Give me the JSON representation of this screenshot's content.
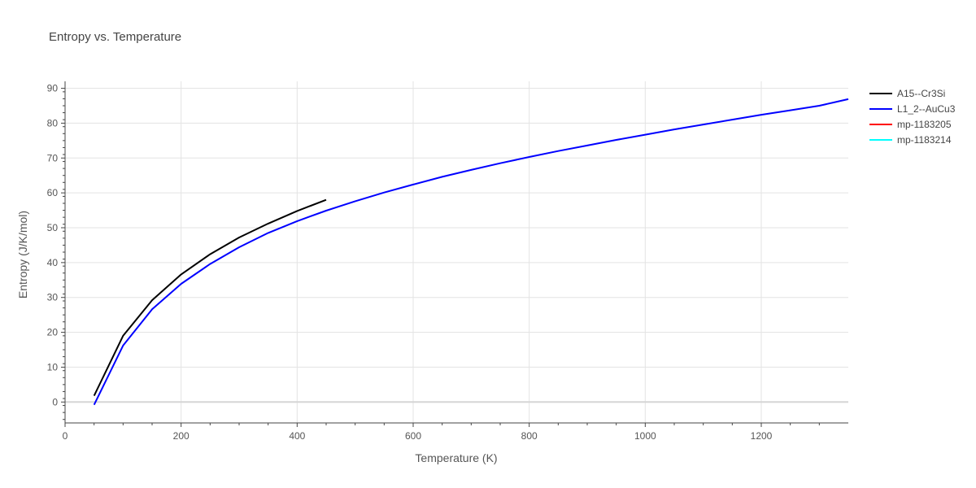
{
  "chart_data": {
    "type": "line",
    "title": "Entropy vs. Temperature",
    "xlabel": "Temperature (K)",
    "ylabel": "Entropy (J/K/mol)",
    "xlim": [
      0,
      1350
    ],
    "ylim": [
      -6,
      92
    ],
    "xticks": [
      0,
      200,
      400,
      600,
      800,
      1000,
      1200
    ],
    "yticks": [
      0,
      10,
      20,
      30,
      40,
      50,
      60,
      70,
      80,
      90
    ],
    "grid": true,
    "legend_position": "top-right",
    "series": [
      {
        "name": "A15--Cr3Si",
        "color": "#000000",
        "x": [
          50,
          100,
          150,
          200,
          250,
          300,
          350,
          400,
          450
        ],
        "y": [
          1.8,
          19.0,
          29.2,
          36.6,
          42.4,
          47.2,
          51.2,
          54.8,
          58.0
        ]
      },
      {
        "name": "L1_2--AuCu3",
        "color": "#0000ff",
        "x": [
          50,
          100,
          150,
          200,
          250,
          300,
          350,
          400,
          450,
          500,
          550,
          600,
          650,
          700,
          750,
          800,
          850,
          900,
          950,
          1000,
          1050,
          1100,
          1150,
          1200,
          1250,
          1300,
          1350
        ],
        "y": [
          -0.8,
          16.2,
          26.6,
          33.9,
          39.6,
          44.4,
          48.5,
          51.9,
          54.9,
          57.6,
          60.1,
          62.4,
          64.6,
          66.6,
          68.5,
          70.3,
          72.0,
          73.6,
          75.2,
          76.7,
          78.2,
          79.6,
          81.0,
          82.4,
          83.7,
          85.0,
          86.9
        ]
      },
      {
        "name": "mp-1183205",
        "color": "#ff0000",
        "x": [],
        "y": []
      },
      {
        "name": "mp-1183214",
        "color": "#00ffff",
        "x": [],
        "y": []
      }
    ]
  }
}
